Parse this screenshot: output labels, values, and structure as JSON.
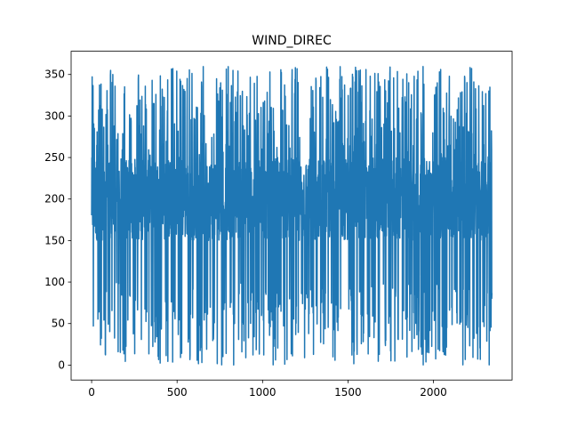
{
  "chart_data": {
    "type": "line",
    "title": "WIND_DIREC",
    "xlabel": "",
    "ylabel": "",
    "xlim": [
      -120,
      2460
    ],
    "ylim": [
      -18,
      378
    ],
    "x_ticks": [
      0,
      500,
      1000,
      1500,
      2000
    ],
    "y_ticks": [
      0,
      50,
      100,
      150,
      200,
      250,
      300,
      350
    ],
    "grid": false,
    "legend": "none",
    "n_points": 2343,
    "series": [
      {
        "color": "#1f77b4",
        "x_start": 0,
        "x_end": 2342,
        "min": 0,
        "max": 360,
        "typical_center": 200,
        "typical_band": [
          150,
          250
        ]
      }
    ]
  }
}
